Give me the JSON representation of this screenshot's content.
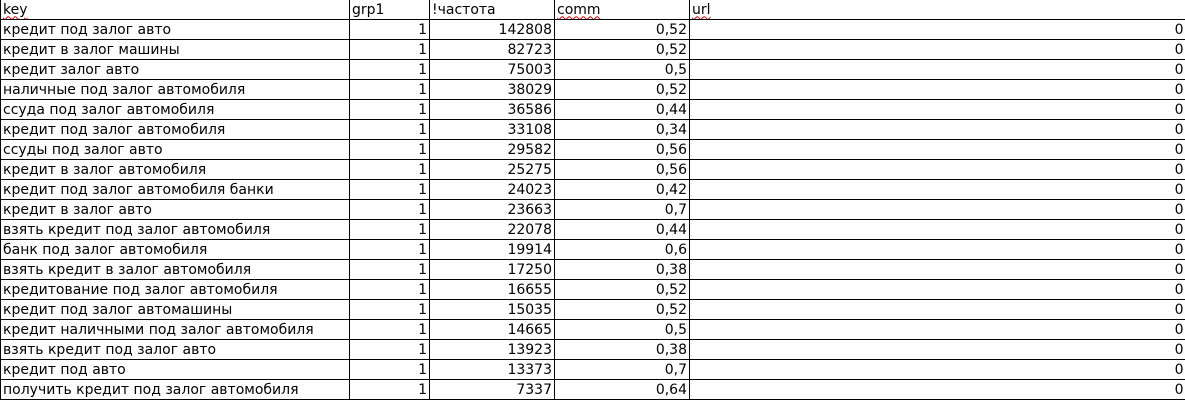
{
  "colors": {
    "background": "#ffffff",
    "grid_border": "#000000",
    "text": "#000000",
    "spellcheck_underline": "#e00000"
  },
  "table": {
    "headers": [
      {
        "label": "key",
        "spellcheck_underline": true
      },
      {
        "label": "grp1",
        "spellcheck_underline": false
      },
      {
        "label": "!частота",
        "spellcheck_underline": false
      },
      {
        "label": "comm",
        "spellcheck_underline": true
      },
      {
        "label": "url",
        "spellcheck_underline": true
      }
    ],
    "rows": [
      {
        "key": "кредит под залог авто",
        "grp1": "1",
        "chastota": "142808",
        "comm": "0,52",
        "url": "0"
      },
      {
        "key": "кредит в залог машины",
        "grp1": "1",
        "chastota": "82723",
        "comm": "0,52",
        "url": "0"
      },
      {
        "key": "кредит залог авто",
        "grp1": "1",
        "chastota": "75003",
        "comm": "0,5",
        "url": "0"
      },
      {
        "key": "наличные под залог автомобиля",
        "grp1": "1",
        "chastota": "38029",
        "comm": "0,52",
        "url": "0"
      },
      {
        "key": "ссуда под залог автомобиля",
        "grp1": "1",
        "chastota": "36586",
        "comm": "0,44",
        "url": "0"
      },
      {
        "key": "кредит под залог автомобиля",
        "grp1": "1",
        "chastota": "33108",
        "comm": "0,34",
        "url": "0"
      },
      {
        "key": "ссуды под залог авто",
        "grp1": "1",
        "chastota": "29582",
        "comm": "0,56",
        "url": "0"
      },
      {
        "key": "кредит в залог автомобиля",
        "grp1": "1",
        "chastota": "25275",
        "comm": "0,56",
        "url": "0"
      },
      {
        "key": "кредит под залог автомобиля банки",
        "grp1": "1",
        "chastota": "24023",
        "comm": "0,42",
        "url": "0"
      },
      {
        "key": "кредит в залог авто",
        "grp1": "1",
        "chastota": "23663",
        "comm": "0,7",
        "url": "0"
      },
      {
        "key": "взять кредит под залог автомобиля",
        "grp1": "1",
        "chastota": "22078",
        "comm": "0,44",
        "url": "0"
      },
      {
        "key": "банк под залог автомобиля",
        "grp1": "1",
        "chastota": "19914",
        "comm": "0,6",
        "url": "0"
      },
      {
        "key": "взять кредит в залог автомобиля",
        "grp1": "1",
        "chastota": "17250",
        "comm": "0,38",
        "url": "0"
      },
      {
        "key": "кредитование под залог автомобиля",
        "grp1": "1",
        "chastota": "16655",
        "comm": "0,52",
        "url": "0"
      },
      {
        "key": "кредит под залог автомашины",
        "grp1": "1",
        "chastota": "15035",
        "comm": "0,52",
        "url": "0"
      },
      {
        "key": "кредит наличными под залог автомобиля",
        "grp1": "1",
        "chastota": "14665",
        "comm": "0,5",
        "url": "0"
      },
      {
        "key": "взять кредит под залог авто",
        "grp1": "1",
        "chastota": "13923",
        "comm": "0,38",
        "url": "0"
      },
      {
        "key": "кредит под авто",
        "grp1": "1",
        "chastota": "13373",
        "comm": "0,7",
        "url": "0"
      },
      {
        "key": "получить кредит под залог автомобиля",
        "grp1": "1",
        "chastota": "7337",
        "comm": "0,64",
        "url": "0"
      }
    ]
  }
}
